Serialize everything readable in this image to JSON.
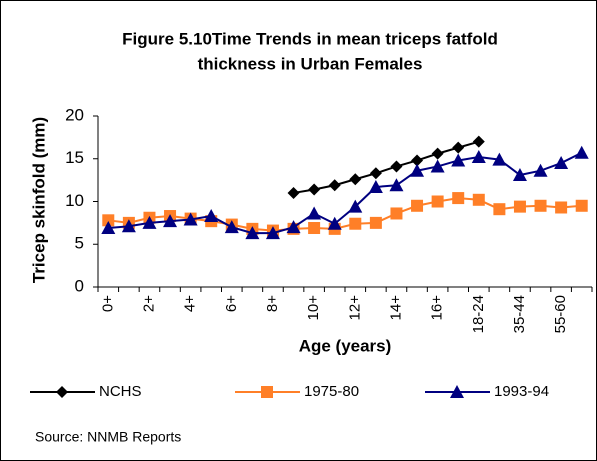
{
  "chart_data": {
    "type": "line",
    "title": "Figure 5.10Time Trends in mean triceps fatfold",
    "subtitle": "thickness in Urban Females",
    "y_label": "Tricep skinfold (mm)",
    "x_label": "Age (years)",
    "source": "Source: NNMB Reports",
    "categories": [
      "0+",
      null,
      "2+",
      null,
      "4+",
      null,
      "6+",
      null,
      "8+",
      null,
      "10+",
      null,
      "12+",
      null,
      "14+",
      null,
      "16+",
      null,
      "18-24",
      null,
      "35-44",
      null,
      "55-60",
      null
    ],
    "ylim": [
      0,
      20
    ],
    "yticks": [
      0,
      5,
      10,
      15,
      20
    ],
    "grid": false,
    "legend": "bottom",
    "series": [
      {
        "name": "NCHS",
        "color": "#000000",
        "marker": "diamond",
        "values": [
          null,
          null,
          null,
          null,
          null,
          null,
          null,
          null,
          null,
          11.0,
          11.4,
          11.9,
          12.6,
          13.3,
          14.1,
          14.8,
          15.6,
          16.3,
          17.0,
          null,
          null,
          null,
          null,
          null
        ]
      },
      {
        "name": "1975-80",
        "color": "#ff7f27",
        "marker": "square",
        "values": [
          7.8,
          7.5,
          8.1,
          8.3,
          8.0,
          7.7,
          7.3,
          6.8,
          6.6,
          6.8,
          6.9,
          6.8,
          7.4,
          7.5,
          8.6,
          9.5,
          10.0,
          10.4,
          10.2,
          9.1,
          9.4,
          9.5,
          9.3,
          9.5
        ]
      },
      {
        "name": "1993-94",
        "color": "#000080",
        "marker": "triangle",
        "values": [
          6.9,
          7.1,
          7.5,
          7.7,
          7.9,
          8.3,
          7.0,
          6.3,
          6.3,
          7.0,
          8.6,
          7.4,
          9.4,
          11.7,
          11.9,
          13.6,
          14.1,
          14.8,
          15.2,
          14.9,
          13.1,
          13.6,
          14.5,
          15.7
        ]
      }
    ]
  }
}
